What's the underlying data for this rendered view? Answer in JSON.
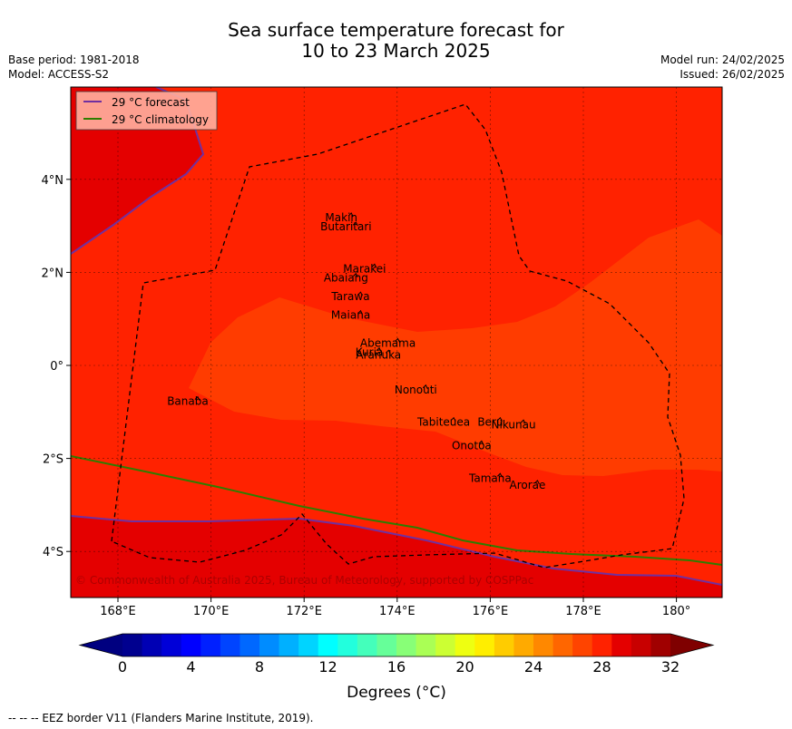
{
  "title_line1": "Sea surface temperature forecast for",
  "title_line2": "10 to 23 March 2025",
  "meta_left": [
    "Base period: 1981-2018",
    "Model: ACCESS-S2"
  ],
  "meta_right": [
    "Model run: 24/02/2025",
    "Issued: 26/02/2025"
  ],
  "legend": {
    "forecast": "29 °C  forecast",
    "climatology": "29 °C  climatology",
    "forecast_color": "#7030a0",
    "climatology_color": "#2e7d00"
  },
  "axes": {
    "x_ticks": [
      "168°E",
      "170°E",
      "172°E",
      "174°E",
      "176°E",
      "178°E",
      "180°"
    ],
    "y_ticks": [
      "4°N",
      "2°N",
      "0°",
      "2°S",
      "4°S"
    ]
  },
  "places": [
    {
      "name": "Makin",
      "lon": 172.8,
      "lat": 3.1
    },
    {
      "name": "Butaritari",
      "lon": 172.9,
      "lat": 2.9
    },
    {
      "name": "Marakei",
      "lon": 173.3,
      "lat": 2.0
    },
    {
      "name": "Abaiang",
      "lon": 172.9,
      "lat": 1.8
    },
    {
      "name": "Tarawa",
      "lon": 173.0,
      "lat": 1.4
    },
    {
      "name": "Maiana",
      "lon": 173.0,
      "lat": 1.0
    },
    {
      "name": "Abemama",
      "lon": 173.8,
      "lat": 0.4
    },
    {
      "name": "Kuria",
      "lon": 173.4,
      "lat": 0.2
    },
    {
      "name": "Aranuka",
      "lon": 173.6,
      "lat": 0.15
    },
    {
      "name": "Nonouti",
      "lon": 174.4,
      "lat": -0.6
    },
    {
      "name": "Banaba",
      "lon": 169.5,
      "lat": -0.85
    },
    {
      "name": "Beru",
      "lon": 176.0,
      "lat": -1.3
    },
    {
      "name": "Nikunau",
      "lon": 176.5,
      "lat": -1.35
    },
    {
      "name": "Tabiteuea",
      "lon": 175.0,
      "lat": -1.3
    },
    {
      "name": "Onotoa",
      "lon": 175.6,
      "lat": -1.8
    },
    {
      "name": "Tamana",
      "lon": 176.0,
      "lat": -2.5
    },
    {
      "name": "Arorae",
      "lon": 176.8,
      "lat": -2.65
    }
  ],
  "copyright": "© Commonwealth of Australia 2025, Bureau of Meteorology, supported by COSPPac",
  "colorbar": {
    "ticks": [
      "0",
      "4",
      "8",
      "12",
      "16",
      "20",
      "24",
      "28",
      "32"
    ],
    "label": "Degrees (°C)",
    "colors": [
      "#00008f",
      "#0000b4",
      "#0000d8",
      "#0000ff",
      "#0020ff",
      "#0044ff",
      "#0068ff",
      "#008cff",
      "#00b0ff",
      "#00d4ff",
      "#00ffff",
      "#22ffdd",
      "#44ffbb",
      "#66ff99",
      "#88ff77",
      "#aaff55",
      "#ccff33",
      "#eeff11",
      "#ffee00",
      "#ffcc00",
      "#ffaa00",
      "#ff8800",
      "#ff6600",
      "#ff4400",
      "#ff2200",
      "#e40000",
      "#c80000",
      "#a00000"
    ],
    "under_color": "#000080",
    "over_color": "#7f0000"
  },
  "footer": "--  --  -- EEZ border V11 (Flanders Marine Institute, 2019)."
}
